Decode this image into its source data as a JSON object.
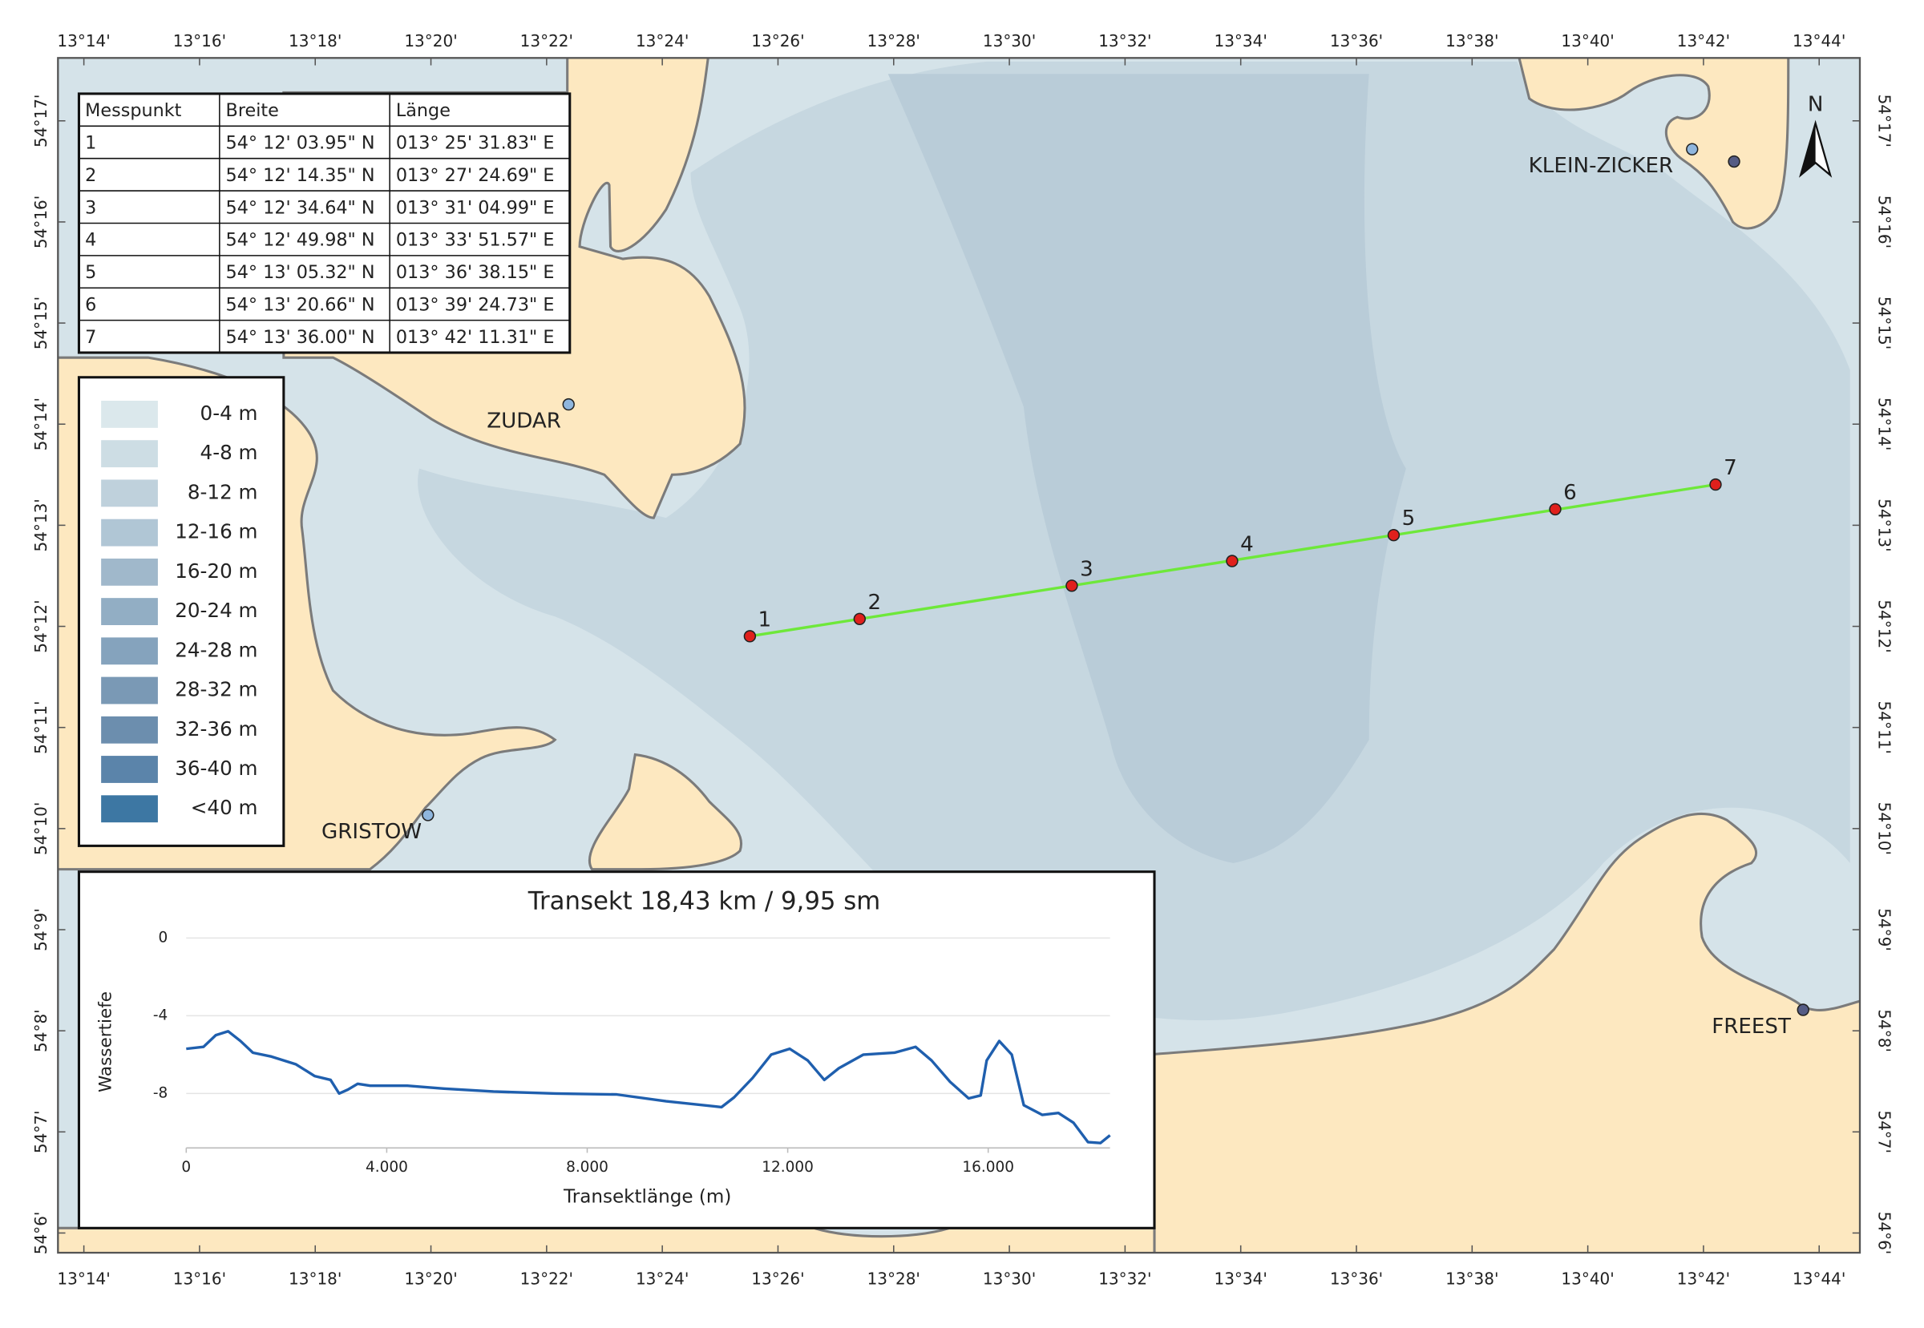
{
  "map": {
    "lon_labels": [
      "13°14'",
      "13°16'",
      "13°18'",
      "13°20'",
      "13°22'",
      "13°24'",
      "13°26'",
      "13°28'",
      "13°30'",
      "13°32'",
      "13°34'",
      "13°36'",
      "13°38'",
      "13°40'",
      "13°42'",
      "13°44'"
    ],
    "lat_labels": [
      "54°17'",
      "54°16'",
      "54°15'",
      "54°14'",
      "54°13'",
      "54°12'",
      "54°11'",
      "54°10'",
      "54°9'",
      "54°8'",
      "54°7'",
      "54°6'"
    ],
    "places": [
      "ZUDAR",
      "GRISTOW",
      "KLEIN-ZICKER",
      "FREEST"
    ],
    "north": "N"
  },
  "table": {
    "header": [
      "Messpunkt",
      "Breite",
      "Länge"
    ],
    "rows": [
      [
        "1",
        "54° 12' 03.95\" N",
        "013° 25' 31.83\" E"
      ],
      [
        "2",
        "54° 12' 14.35\" N",
        "013° 27' 24.69\" E"
      ],
      [
        "3",
        "54° 12' 34.64\" N",
        "013° 31' 04.99\" E"
      ],
      [
        "4",
        "54° 12' 49.98\" N",
        "013° 33' 51.57\" E"
      ],
      [
        "5",
        "54° 13' 05.32\" N",
        "013° 36' 38.15\" E"
      ],
      [
        "6",
        "54° 13' 20.66\" N",
        "013° 39' 24.73\" E"
      ],
      [
        "7",
        "54° 13' 36.00\" N",
        "013° 42' 11.31\" E"
      ]
    ]
  },
  "legend": {
    "items": [
      {
        "label": "0-4 m",
        "color": "#dbe8ec"
      },
      {
        "label": "4-8 m",
        "color": "#cddde4"
      },
      {
        "label": "8-12 m",
        "color": "#bfd1dc"
      },
      {
        "label": "12-16 m",
        "color": "#b0c6d5"
      },
      {
        "label": "16-20 m",
        "color": "#a0b8cb"
      },
      {
        "label": "20-24 m",
        "color": "#92aec4"
      },
      {
        "label": "24-28 m",
        "color": "#85a3bd"
      },
      {
        "label": "28-32 m",
        "color": "#7a99b5"
      },
      {
        "label": "32-36 m",
        "color": "#6c8eae"
      },
      {
        "label": "36-40 m",
        "color": "#5b84aa"
      },
      {
        "label": "<40 m",
        "color": "#3d77a3"
      }
    ]
  },
  "chart_data": {
    "type": "line",
    "title": "Transekt 18,43 km / 9,95 sm",
    "x_label": "Transektlänge (m)",
    "y_label": "Wassertiefe",
    "color": "#1f5fae",
    "grid": true,
    "xlim": [
      0,
      18430
    ],
    "ylim": [
      -10.8,
      1
    ],
    "xticks": [
      0,
      {
        "value": 4000,
        "label": "4.000"
      },
      {
        "value": 8000,
        "label": "8.000"
      },
      {
        "value": 12000,
        "label": "12.000"
      },
      {
        "value": 16000,
        "label": "16.000"
      }
    ],
    "yticks": [
      0,
      -4,
      -8
    ],
    "x": [
      0,
      345,
      590,
      837,
      1083,
      1330,
      1700,
      2190,
      2560,
      2880,
      3050,
      3225,
      3420,
      3670,
      4410,
      5140,
      6130,
      7360,
      8590,
      9575,
      10680,
      10930,
      11300,
      11670,
      12040,
      12400,
      12730,
      13020,
      13510,
      14130,
      14550,
      14870,
      15240,
      15610,
      15850,
      15970,
      16220,
      16470,
      16710,
      17080,
      17400,
      17700,
      17990,
      18240,
      18430
    ],
    "values": [
      -5.7,
      -5.6,
      -5.0,
      -4.8,
      -5.3,
      -5.9,
      -6.1,
      -6.5,
      -7.1,
      -7.3,
      -8.0,
      -7.8,
      -7.5,
      -7.6,
      -7.6,
      -7.75,
      -7.9,
      -8.0,
      -8.05,
      -8.4,
      -8.7,
      -8.2,
      -7.2,
      -6.0,
      -5.7,
      -6.3,
      -7.3,
      -6.7,
      -6.0,
      -5.9,
      -5.6,
      -6.3,
      -7.4,
      -8.25,
      -8.1,
      -6.3,
      -5.3,
      -6.0,
      -8.6,
      -9.1,
      -9.0,
      -9.5,
      -10.5,
      -10.55,
      -10.15
    ]
  }
}
